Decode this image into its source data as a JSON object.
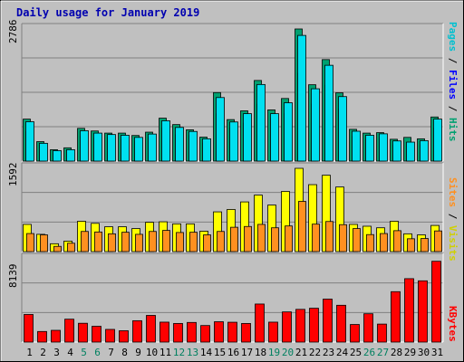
{
  "title": "Daily usage for January 2019",
  "legend": {
    "pages": "Pages",
    "files": "Files",
    "hits": "Hits",
    "sites": "Sites",
    "visits": "Visits",
    "kbytes": "KBytes",
    "sep": " / "
  },
  "colors": {
    "hits": "#00a070",
    "files": "#0000ff",
    "pages": "#00e0f0",
    "visits": "#ffff00",
    "sites": "#ff9020",
    "kbytes": "#ff0000",
    "weekend": "#008060",
    "weekday": "#000000"
  },
  "chart_data": [
    {
      "type": "bar",
      "ymax_label": "2786",
      "ylim": [
        0,
        2786
      ],
      "categories": [
        "1",
        "2",
        "3",
        "4",
        "5",
        "6",
        "7",
        "8",
        "9",
        "10",
        "11",
        "12",
        "13",
        "14",
        "15",
        "16",
        "17",
        "18",
        "19",
        "20",
        "21",
        "22",
        "23",
        "24",
        "25",
        "26",
        "27",
        "28",
        "29",
        "30",
        "31"
      ],
      "series": [
        {
          "name": "Hits",
          "values": [
            885,
            410,
            240,
            280,
            690,
            635,
            590,
            590,
            540,
            610,
            905,
            770,
            660,
            505,
            1445,
            875,
            1060,
            1700,
            1080,
            1320,
            2786,
            1610,
            2140,
            1440,
            670,
            590,
            600,
            460,
            500,
            470,
            930
          ]
        },
        {
          "name": "Files",
          "values": [
            620,
            340,
            180,
            240,
            520,
            480,
            500,
            450,
            420,
            500,
            700,
            560,
            540,
            380,
            1000,
            700,
            800,
            1200,
            900,
            1000,
            1850,
            1200,
            1600,
            1100,
            520,
            460,
            480,
            340,
            380,
            340,
            700
          ]
        },
        {
          "name": "Pages",
          "values": [
            830,
            375,
            220,
            240,
            640,
            590,
            560,
            545,
            500,
            570,
            850,
            710,
            625,
            470,
            1340,
            825,
            1000,
            1615,
            1000,
            1230,
            2650,
            1525,
            2020,
            1360,
            630,
            545,
            575,
            425,
            400,
            430,
            885
          ]
        }
      ],
      "weekend_days": [
        "5",
        "6",
        "12",
        "13",
        "19",
        "20",
        "26",
        "27"
      ]
    },
    {
      "type": "bar",
      "ymax_label": "1592",
      "ylim": [
        0,
        1592
      ],
      "categories": [
        "1",
        "2",
        "3",
        "4",
        "5",
        "6",
        "7",
        "8",
        "9",
        "10",
        "11",
        "12",
        "13",
        "14",
        "15",
        "16",
        "17",
        "18",
        "19",
        "20",
        "21",
        "22",
        "23",
        "24",
        "25",
        "26",
        "27",
        "28",
        "29",
        "30",
        "31"
      ],
      "series": [
        {
          "name": "Visits",
          "values": [
            520,
            330,
            150,
            200,
            580,
            540,
            475,
            475,
            440,
            560,
            570,
            530,
            530,
            390,
            760,
            805,
            950,
            1080,
            890,
            1150,
            1592,
            1280,
            1460,
            1235,
            520,
            485,
            455,
            580,
            340,
            320,
            500
          ]
        },
        {
          "name": "Sites",
          "values": [
            345,
            320,
            100,
            160,
            385,
            375,
            340,
            370,
            330,
            385,
            405,
            365,
            370,
            320,
            385,
            465,
            480,
            520,
            455,
            490,
            960,
            525,
            575,
            515,
            440,
            325,
            345,
            400,
            245,
            250,
            395
          ]
        }
      ]
    },
    {
      "type": "bar",
      "ymax_label": "8139",
      "ylim": [
        0,
        8139
      ],
      "categories": [
        "1",
        "2",
        "3",
        "4",
        "5",
        "6",
        "7",
        "8",
        "9",
        "10",
        "11",
        "12",
        "13",
        "14",
        "15",
        "16",
        "17",
        "18",
        "19",
        "20",
        "21",
        "22",
        "23",
        "24",
        "25",
        "26",
        "27",
        "28",
        "29",
        "30",
        "31"
      ],
      "series": [
        {
          "name": "KBytes",
          "values": [
            2700,
            1035,
            1150,
            2240,
            1840,
            1545,
            1240,
            1110,
            2090,
            2610,
            1950,
            1820,
            1920,
            1620,
            1990,
            1940,
            1820,
            3720,
            1950,
            2950,
            3200,
            3310,
            4200,
            3600,
            1720,
            2770,
            1760,
            4930,
            6200,
            5990,
            7900
          ]
        }
      ]
    }
  ]
}
